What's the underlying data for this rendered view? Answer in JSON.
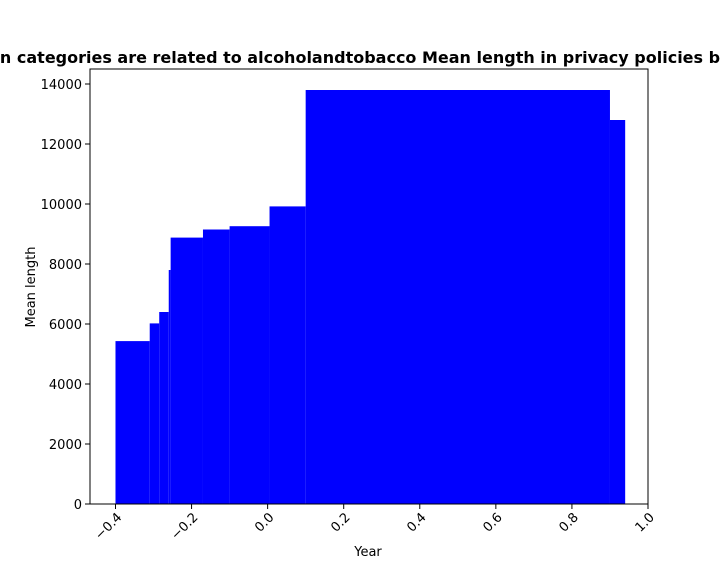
{
  "chart_data": {
    "type": "bar",
    "title": "n categories are related to alcoholandtobacco Mean length in privacy policies b",
    "xlabel": "Year",
    "ylabel": "Mean length",
    "xlim": [
      -0.467,
      1.0
    ],
    "ylim": [
      0,
      15200
    ],
    "xticks": [
      -0.4,
      -0.2,
      0.0,
      0.2,
      0.4,
      0.6,
      0.8,
      1.0
    ],
    "xtick_labels": [
      "−0.4",
      "−0.2",
      "0.0",
      "0.2",
      "0.4",
      "0.6",
      "0.8",
      "1.0"
    ],
    "xtick_rotation": 45,
    "yticks": [
      0,
      2000,
      4000,
      6000,
      8000,
      10000,
      12000,
      14000
    ],
    "ytick_labels": [
      "0",
      "2000",
      "4000",
      "6000",
      "8000",
      "10000",
      "12000",
      "14000"
    ],
    "grid": false,
    "color": "#0000ff",
    "bars": [
      {
        "x_start": -0.4,
        "x_end": -0.31,
        "value": 5430
      },
      {
        "x_start": -0.31,
        "x_end": -0.285,
        "value": 6020
      },
      {
        "x_start": -0.285,
        "x_end": -0.26,
        "value": 6400
      },
      {
        "x_start": -0.26,
        "x_end": -0.255,
        "value": 7800
      },
      {
        "x_start": -0.255,
        "x_end": -0.17,
        "value": 8880
      },
      {
        "x_start": -0.17,
        "x_end": -0.1,
        "value": 9150
      },
      {
        "x_start": -0.1,
        "x_end": 0.005,
        "value": 9260
      },
      {
        "x_start": 0.005,
        "x_end": 0.1,
        "value": 9920
      },
      {
        "x_start": 0.1,
        "x_end": 0.9,
        "value": 15200
      },
      {
        "x_start": 0.9,
        "x_end": 0.94,
        "value": 12800
      }
    ]
  }
}
